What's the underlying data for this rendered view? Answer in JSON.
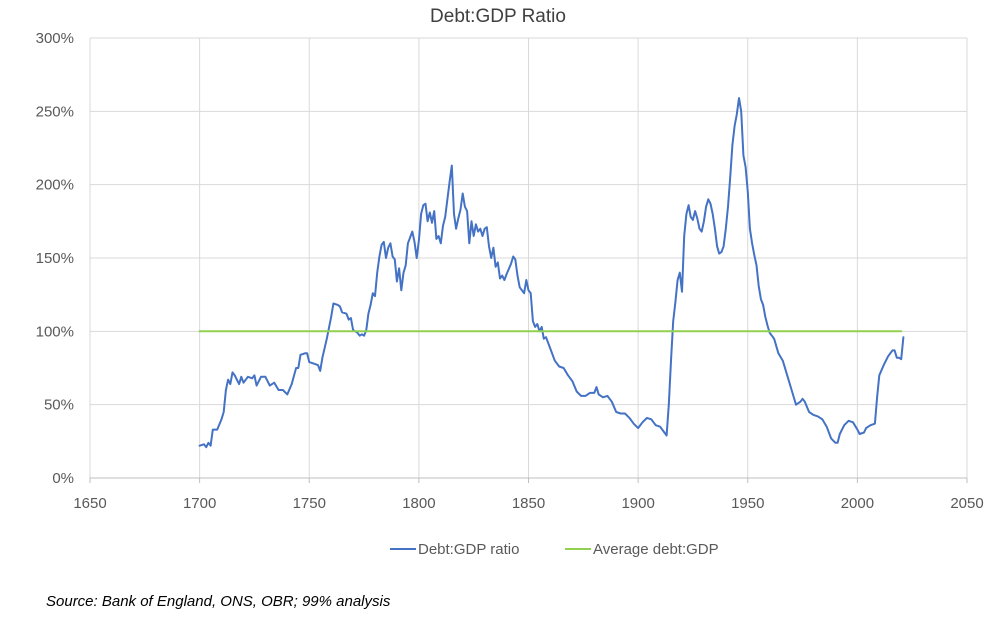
{
  "chart_data": {
    "type": "line",
    "title": "Debt:GDP Ratio",
    "xlabel": "",
    "ylabel": "",
    "xlim": [
      1650,
      2050
    ],
    "ylim": [
      0,
      300
    ],
    "x_ticks": [
      "1650",
      "1700",
      "1750",
      "1800",
      "1850",
      "1900",
      "1950",
      "2000",
      "2050"
    ],
    "y_ticks": [
      "0%",
      "50%",
      "100%",
      "150%",
      "200%",
      "250%",
      "300%"
    ],
    "grid": true,
    "legend": "bottom",
    "series": [
      {
        "name": "Debt:GDP ratio",
        "color": "#4472C4",
        "points": [
          [
            1700,
            22
          ],
          [
            1702,
            23
          ],
          [
            1703,
            21
          ],
          [
            1704,
            24
          ],
          [
            1705,
            22
          ],
          [
            1706,
            33
          ],
          [
            1708,
            33
          ],
          [
            1710,
            40
          ],
          [
            1711,
            45
          ],
          [
            1712,
            60
          ],
          [
            1713,
            67
          ],
          [
            1714,
            64
          ],
          [
            1715,
            72
          ],
          [
            1716,
            70
          ],
          [
            1718,
            64
          ],
          [
            1719,
            69
          ],
          [
            1720,
            65
          ],
          [
            1722,
            69
          ],
          [
            1724,
            68
          ],
          [
            1725,
            70
          ],
          [
            1726,
            63
          ],
          [
            1728,
            69
          ],
          [
            1730,
            69
          ],
          [
            1732,
            63
          ],
          [
            1734,
            65
          ],
          [
            1736,
            60
          ],
          [
            1738,
            60
          ],
          [
            1740,
            57
          ],
          [
            1742,
            64
          ],
          [
            1744,
            75
          ],
          [
            1745,
            75
          ],
          [
            1746,
            84
          ],
          [
            1748,
            85
          ],
          [
            1749,
            85
          ],
          [
            1750,
            79
          ],
          [
            1752,
            78
          ],
          [
            1754,
            77
          ],
          [
            1755,
            73
          ],
          [
            1756,
            82
          ],
          [
            1758,
            95
          ],
          [
            1760,
            110
          ],
          [
            1761,
            119
          ],
          [
            1763,
            118
          ],
          [
            1764,
            117
          ],
          [
            1765,
            113
          ],
          [
            1767,
            112
          ],
          [
            1768,
            108
          ],
          [
            1769,
            109
          ],
          [
            1770,
            101
          ],
          [
            1772,
            99
          ],
          [
            1773,
            97
          ],
          [
            1774,
            98
          ],
          [
            1775,
            97
          ],
          [
            1776,
            101
          ],
          [
            1777,
            112
          ],
          [
            1778,
            118
          ],
          [
            1779,
            126
          ],
          [
            1780,
            124
          ],
          [
            1781,
            140
          ],
          [
            1782,
            151
          ],
          [
            1783,
            159
          ],
          [
            1784,
            161
          ],
          [
            1785,
            150
          ],
          [
            1786,
            157
          ],
          [
            1787,
            160
          ],
          [
            1788,
            151
          ],
          [
            1789,
            149
          ],
          [
            1790,
            134
          ],
          [
            1791,
            143
          ],
          [
            1792,
            128
          ],
          [
            1793,
            140
          ],
          [
            1794,
            145
          ],
          [
            1795,
            160
          ],
          [
            1796,
            164
          ],
          [
            1797,
            168
          ],
          [
            1798,
            161
          ],
          [
            1799,
            150
          ],
          [
            1800,
            162
          ],
          [
            1801,
            180
          ],
          [
            1802,
            186
          ],
          [
            1803,
            187
          ],
          [
            1804,
            175
          ],
          [
            1805,
            181
          ],
          [
            1806,
            174
          ],
          [
            1807,
            182
          ],
          [
            1808,
            163
          ],
          [
            1809,
            165
          ],
          [
            1810,
            160
          ],
          [
            1811,
            172
          ],
          [
            1812,
            178
          ],
          [
            1813,
            190
          ],
          [
            1814,
            202
          ],
          [
            1815,
            213
          ],
          [
            1816,
            180
          ],
          [
            1817,
            170
          ],
          [
            1818,
            177
          ],
          [
            1819,
            183
          ],
          [
            1820,
            194
          ],
          [
            1821,
            185
          ],
          [
            1822,
            182
          ],
          [
            1823,
            160
          ],
          [
            1824,
            175
          ],
          [
            1825,
            165
          ],
          [
            1826,
            173
          ],
          [
            1827,
            168
          ],
          [
            1828,
            170
          ],
          [
            1829,
            165
          ],
          [
            1830,
            170
          ],
          [
            1831,
            171
          ],
          [
            1832,
            158
          ],
          [
            1833,
            150
          ],
          [
            1834,
            157
          ],
          [
            1835,
            144
          ],
          [
            1836,
            147
          ],
          [
            1837,
            136
          ],
          [
            1838,
            138
          ],
          [
            1839,
            135
          ],
          [
            1840,
            139
          ],
          [
            1842,
            146
          ],
          [
            1843,
            151
          ],
          [
            1844,
            149
          ],
          [
            1845,
            138
          ],
          [
            1846,
            130
          ],
          [
            1848,
            126
          ],
          [
            1849,
            135
          ],
          [
            1850,
            128
          ],
          [
            1851,
            126
          ],
          [
            1852,
            107
          ],
          [
            1853,
            103
          ],
          [
            1854,
            105
          ],
          [
            1855,
            100
          ],
          [
            1856,
            103
          ],
          [
            1857,
            95
          ],
          [
            1858,
            96
          ],
          [
            1860,
            88
          ],
          [
            1862,
            80
          ],
          [
            1864,
            76
          ],
          [
            1866,
            75
          ],
          [
            1868,
            70
          ],
          [
            1870,
            66
          ],
          [
            1872,
            59
          ],
          [
            1874,
            56
          ],
          [
            1876,
            56
          ],
          [
            1878,
            58
          ],
          [
            1880,
            58
          ],
          [
            1881,
            62
          ],
          [
            1882,
            57
          ],
          [
            1884,
            55
          ],
          [
            1886,
            56
          ],
          [
            1888,
            52
          ],
          [
            1890,
            45
          ],
          [
            1892,
            44
          ],
          [
            1894,
            44
          ],
          [
            1896,
            41
          ],
          [
            1898,
            37
          ],
          [
            1900,
            34
          ],
          [
            1902,
            38
          ],
          [
            1904,
            41
          ],
          [
            1906,
            40
          ],
          [
            1908,
            36
          ],
          [
            1910,
            35
          ],
          [
            1912,
            31
          ],
          [
            1913,
            29
          ],
          [
            1914,
            50
          ],
          [
            1915,
            80
          ],
          [
            1916,
            107
          ],
          [
            1917,
            120
          ],
          [
            1918,
            135
          ],
          [
            1919,
            140
          ],
          [
            1920,
            127
          ],
          [
            1921,
            165
          ],
          [
            1922,
            180
          ],
          [
            1923,
            186
          ],
          [
            1924,
            178
          ],
          [
            1925,
            176
          ],
          [
            1926,
            182
          ],
          [
            1927,
            177
          ],
          [
            1928,
            170
          ],
          [
            1929,
            168
          ],
          [
            1930,
            175
          ],
          [
            1931,
            185
          ],
          [
            1932,
            190
          ],
          [
            1933,
            187
          ],
          [
            1934,
            180
          ],
          [
            1935,
            170
          ],
          [
            1936,
            158
          ],
          [
            1937,
            153
          ],
          [
            1938,
            154
          ],
          [
            1939,
            158
          ],
          [
            1940,
            170
          ],
          [
            1941,
            185
          ],
          [
            1942,
            205
          ],
          [
            1943,
            227
          ],
          [
            1944,
            240
          ],
          [
            1945,
            248
          ],
          [
            1946,
            259
          ],
          [
            1947,
            250
          ],
          [
            1948,
            220
          ],
          [
            1949,
            212
          ],
          [
            1950,
            195
          ],
          [
            1951,
            170
          ],
          [
            1952,
            160
          ],
          [
            1953,
            152
          ],
          [
            1954,
            145
          ],
          [
            1955,
            131
          ],
          [
            1956,
            122
          ],
          [
            1957,
            118
          ],
          [
            1958,
            110
          ],
          [
            1959,
            104
          ],
          [
            1960,
            99
          ],
          [
            1962,
            95
          ],
          [
            1964,
            85
          ],
          [
            1966,
            80
          ],
          [
            1968,
            70
          ],
          [
            1970,
            60
          ],
          [
            1972,
            50
          ],
          [
            1974,
            52
          ],
          [
            1975,
            54
          ],
          [
            1976,
            52
          ],
          [
            1978,
            45
          ],
          [
            1980,
            43
          ],
          [
            1982,
            42
          ],
          [
            1984,
            40
          ],
          [
            1986,
            35
          ],
          [
            1988,
            27
          ],
          [
            1990,
            24
          ],
          [
            1991,
            24
          ],
          [
            1992,
            30
          ],
          [
            1994,
            36
          ],
          [
            1996,
            39
          ],
          [
            1998,
            38
          ],
          [
            2000,
            33
          ],
          [
            2001,
            30
          ],
          [
            2003,
            31
          ],
          [
            2004,
            34
          ],
          [
            2006,
            36
          ],
          [
            2008,
            37
          ],
          [
            2009,
            55
          ],
          [
            2010,
            70
          ],
          [
            2012,
            77
          ],
          [
            2014,
            83
          ],
          [
            2015,
            85
          ],
          [
            2016,
            87
          ],
          [
            2017,
            87
          ],
          [
            2018,
            82
          ],
          [
            2019,
            82
          ],
          [
            2020,
            81
          ],
          [
            2021,
            96
          ]
        ]
      },
      {
        "name": "Average debt:GDP",
        "color": "#92D050",
        "points": [
          [
            1700,
            100
          ],
          [
            2020,
            100
          ]
        ]
      }
    ],
    "source": "Source: Bank of England, ONS, OBR; 99% analysis"
  }
}
